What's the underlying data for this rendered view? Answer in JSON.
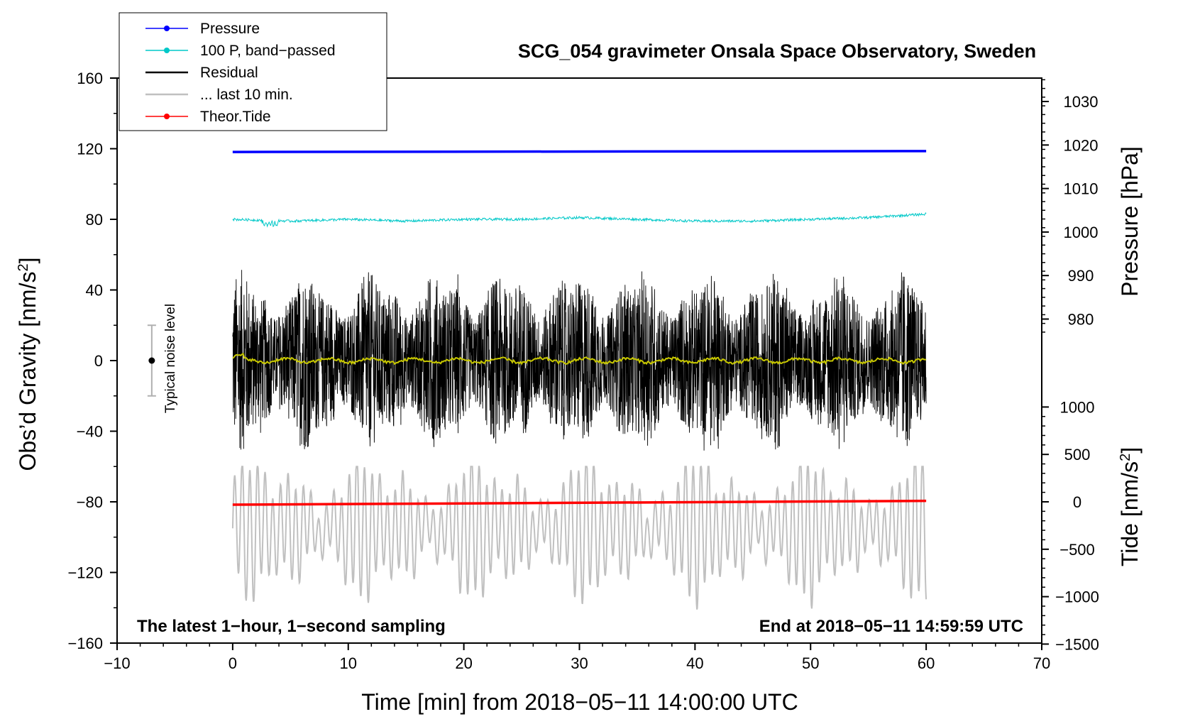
{
  "chart_data": {
    "type": "line",
    "title": "SCG_054 gravimeter Onsala Space Observatory, Sweden",
    "xlabel": "Time [min] from 2018−05−11 14:00:00 UTC",
    "ylabel_left": "Obs’d Gravity [nm/s",
    "ylabel_left_sup": "2",
    "ylabel_left_close": "]",
    "ylabel_right_pressure": "Pressure [hPa]",
    "ylabel_right_tide": "Tide [nm/s",
    "ylabel_right_tide_sup": "2",
    "ylabel_right_tide_close": "]",
    "xlim": [
      -10,
      70
    ],
    "ylim": [
      -160,
      160
    ],
    "x_ticks": [
      "−10",
      "0",
      "10",
      "20",
      "30",
      "40",
      "50",
      "60",
      "70"
    ],
    "y_ticks": [
      "160",
      "120",
      "80",
      "40",
      "0",
      "−40",
      "−80",
      "−120",
      "−160"
    ],
    "pressure_ticks": [
      "1030",
      "1020",
      "1010",
      "1000",
      "990",
      "980"
    ],
    "pressure_tick_values": [
      1030,
      1020,
      1010,
      1000,
      990,
      980
    ],
    "tide_ticks": [
      "1000",
      "500",
      "0",
      "−500",
      "−1000",
      "−1500"
    ],
    "tide_tick_values": [
      1000,
      500,
      0,
      -500,
      -1000,
      -1500
    ],
    "note_left": "The latest 1−hour, 1−second sampling",
    "note_right": "End at 2018−05−11 14:59:59 UTC",
    "noise_label": "Typical noise level",
    "noise_level_range": [
      -20,
      20
    ],
    "noise_x": -7,
    "legend": [
      {
        "name": "Pressure",
        "color": "#0000ff",
        "marker": true
      },
      {
        "name": "100 P, band−passed",
        "color": "#00c8c8",
        "marker": true
      },
      {
        "name": "Residual",
        "color": "#000000",
        "marker": false
      },
      {
        "name": "... last 10 min.",
        "color": "#c0c0c0",
        "marker": false
      },
      {
        "name": "Theor.Tide",
        "color": "#ff0000",
        "marker": true
      }
    ],
    "series": [
      {
        "name": "Pressure",
        "color": "#0000ff",
        "axis": "pressure",
        "x": [
          0,
          60
        ],
        "values": [
          1018.4,
          1018.6
        ]
      },
      {
        "name": "100 P, band−passed",
        "color": "#00c8c8",
        "axis": "left",
        "x": [
          0,
          5,
          10,
          15,
          20,
          25,
          30,
          35,
          40,
          45,
          50,
          55,
          60
        ],
        "values": [
          80,
          79,
          80,
          79,
          80,
          80,
          81,
          80,
          79,
          79,
          80,
          81,
          83
        ]
      },
      {
        "name": "Residual",
        "color": "#000000",
        "axis": "left",
        "x_range": [
          0,
          60
        ],
        "amplitude_range": [
          -62,
          65
        ]
      },
      {
        "name": "smoothed residual",
        "color": "#c8c800",
        "axis": "left",
        "x_range": [
          0,
          60
        ],
        "values_approx": 0
      },
      {
        "name": "... last 10 min.",
        "color": "#c0c0c0",
        "axis": "left",
        "x_range": [
          0,
          60
        ],
        "center": -95,
        "amplitude_range": [
          -143,
          -60
        ]
      },
      {
        "name": "Theor.Tide",
        "color": "#ff0000",
        "axis": "tide",
        "x": [
          0,
          60
        ],
        "values": [
          -30,
          10
        ]
      }
    ]
  }
}
